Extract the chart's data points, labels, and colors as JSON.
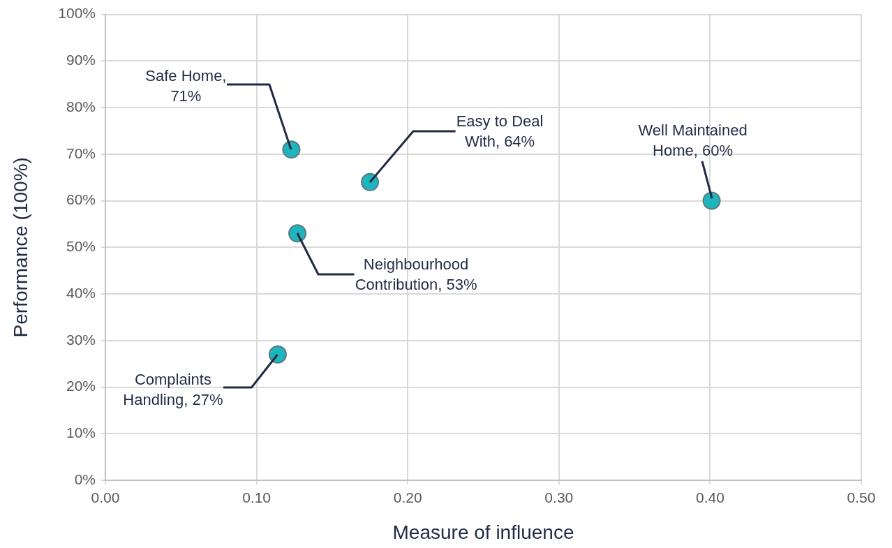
{
  "chart_data": {
    "type": "scatter",
    "xlabel": "Measure of influence",
    "ylabel": "Performance (100%)",
    "x": [
      0.123,
      0.175,
      0.401,
      0.127,
      0.114
    ],
    "values": [
      71,
      64,
      60,
      53,
      27
    ],
    "color": "#1fb5bf",
    "marker": "circle",
    "grid": true,
    "xlim": [
      0,
      0.5
    ],
    "xticks": [
      {
        "value": 0,
        "label": "0.00"
      },
      {
        "value": 0.1,
        "label": "0.10"
      },
      {
        "value": 0.2,
        "label": "0.20"
      },
      {
        "value": 0.3,
        "label": "0.30"
      },
      {
        "value": 0.4,
        "label": "0.40"
      },
      {
        "value": 0.5,
        "label": "0.50"
      }
    ],
    "ylim": [
      0,
      100
    ],
    "yticks": [
      {
        "value": 0,
        "label": "0%"
      },
      {
        "value": 10,
        "label": "10%"
      },
      {
        "value": 20,
        "label": "20%"
      },
      {
        "value": 30,
        "label": "30%"
      },
      {
        "value": 40,
        "label": "40%"
      },
      {
        "value": 50,
        "label": "50%"
      },
      {
        "value": 60,
        "label": "60%"
      },
      {
        "value": 70,
        "label": "70%"
      },
      {
        "value": 80,
        "label": "80%"
      },
      {
        "value": 90,
        "label": "90%"
      },
      {
        "value": 100,
        "label": "100%"
      }
    ],
    "annotations": [
      {
        "text": "Safe Home, 71%",
        "x": 0.123,
        "y": 71
      },
      {
        "text": "Easy to Deal With, 64%",
        "x": 0.175,
        "y": 64
      },
      {
        "text": "Well Maintained Home, 60%",
        "x": 0.401,
        "y": 60
      },
      {
        "text": "Neighbourhood Contribution, 53%",
        "x": 0.127,
        "y": 53
      },
      {
        "text": "Complaints Handling, 27%",
        "x": 0.114,
        "y": 27
      }
    ]
  }
}
